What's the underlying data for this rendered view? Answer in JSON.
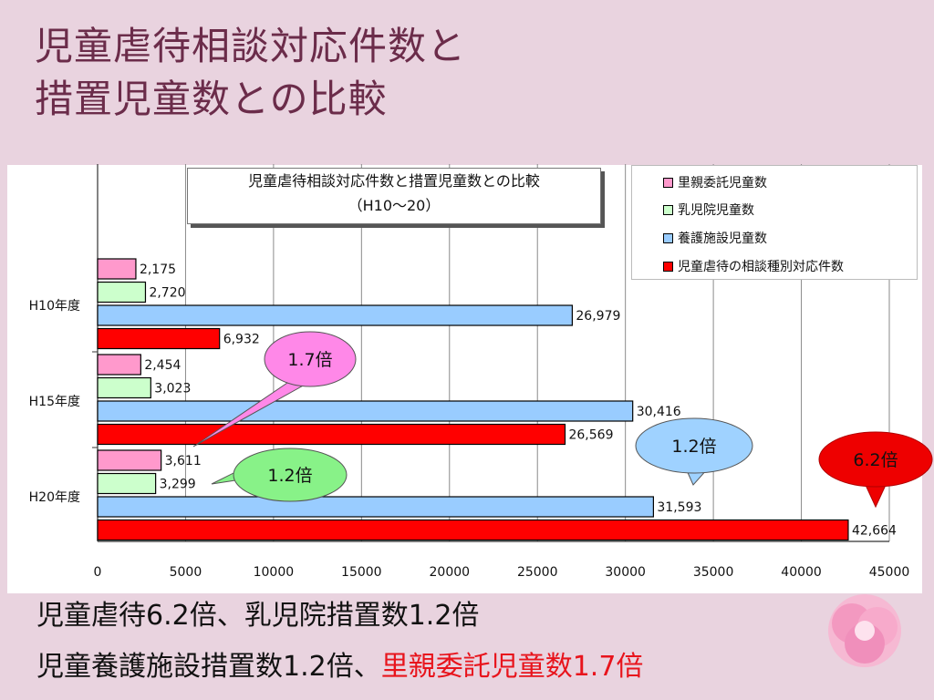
{
  "slide": {
    "title_lines": [
      "児童虐待相談対応件数と",
      "措置児童数との比較"
    ],
    "summary_line1": "児童虐待6.2倍、乳児院措置数1.2倍",
    "summary_line2_plain": "児童養護施設措置数1.2倍、",
    "summary_line2_highlight": "里親委託児童数1.7倍"
  },
  "chart_data": {
    "type": "bar",
    "orientation": "horizontal",
    "title": "児童虐待相談対応件数と措置児童数との比較",
    "subtitle": "（H10～20）",
    "categories": [
      "H10年度",
      "H15年度",
      "H20年度"
    ],
    "series": [
      {
        "name": "里親委託児童数",
        "color": "#ff99cc",
        "values": [
          2175,
          2454,
          3611
        ],
        "labels": [
          "2,175",
          "2,454",
          "3,611"
        ]
      },
      {
        "name": "乳児院児童数",
        "color": "#ccffcc",
        "values": [
          2720,
          3023,
          3299
        ],
        "labels": [
          "2,720",
          "3,023",
          "3,299"
        ]
      },
      {
        "name": "養護施設児童数",
        "color": "#99ccff",
        "values": [
          26979,
          30416,
          31593
        ],
        "labels": [
          "26,979",
          "30,416",
          "31,593"
        ]
      },
      {
        "name": "児童虐待の相談種別対応件数",
        "color": "#ff0000",
        "values": [
          6932,
          26569,
          42664
        ],
        "labels": [
          "6,932",
          "26,569",
          "42,664"
        ]
      }
    ],
    "xlim": [
      0,
      45000
    ],
    "xticks": [
      0,
      5000,
      10000,
      15000,
      20000,
      25000,
      30000,
      35000,
      40000,
      45000
    ],
    "grid": true,
    "legend_position": "top-right",
    "annotations": [
      {
        "text": "1.7倍",
        "fill": "#ff88e8"
      },
      {
        "text": "1.2倍",
        "fill": "#88f288"
      },
      {
        "text": "1.2倍",
        "fill": "#9fd2ff"
      },
      {
        "text": "6.2倍",
        "fill": "#ee0000"
      }
    ]
  }
}
